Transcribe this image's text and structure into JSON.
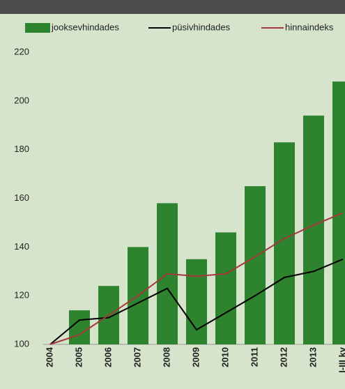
{
  "chart_data": {
    "type": "bar",
    "categories": [
      "2004",
      "2005",
      "2006",
      "2007",
      "2008",
      "2009",
      "2010",
      "2011",
      "2012",
      "2013",
      "I-III kv"
    ],
    "series": [
      {
        "name": "jooksevhindades",
        "type": "bar",
        "color": "#2e842e",
        "values": [
          100,
          114,
          124,
          140,
          158,
          135,
          146,
          165,
          183,
          194,
          208
        ]
      },
      {
        "name": "püsivhindades",
        "type": "line",
        "color": "#000000",
        "values": [
          100,
          110,
          111,
          117,
          123,
          106,
          113,
          120,
          127.5,
          130,
          135
        ]
      },
      {
        "name": "hinnaindeks",
        "type": "line",
        "color": "#a3383a",
        "values": [
          100,
          104,
          112,
          120,
          129,
          128,
          129,
          136,
          143.5,
          149,
          154
        ]
      }
    ],
    "ylim": [
      100,
      220
    ],
    "yticks": [
      100,
      120,
      140,
      160,
      180,
      200,
      220
    ]
  }
}
